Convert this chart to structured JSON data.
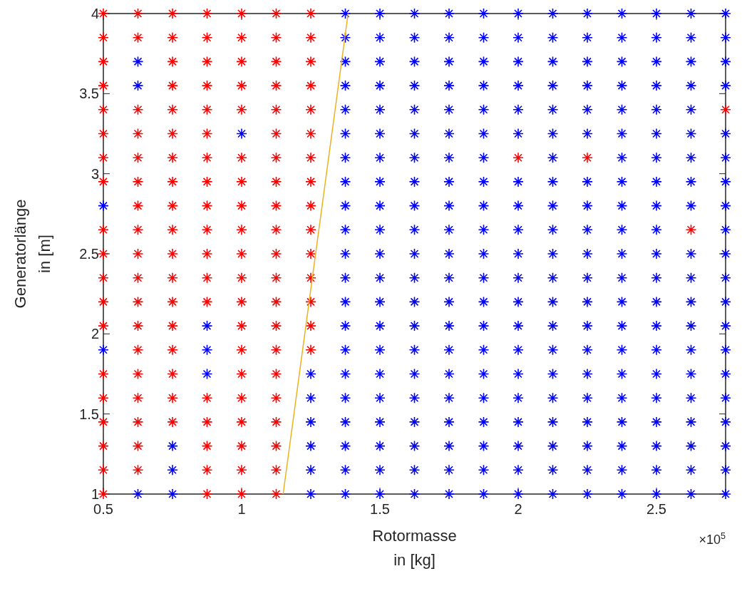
{
  "chart_data": {
    "type": "scatter",
    "xlabel": "Rotormasse\nin [kg]",
    "ylabel": "Generatorlänge\nin [m]",
    "annotations": [
      "×10$^{5}$"
    ],
    "xlim": [
      0.5,
      2.75
    ],
    "xticks": [
      0.5,
      1,
      1.5,
      2,
      2.5
    ],
    "ylim": [
      1,
      4
    ],
    "yticks": [
      1,
      1.5,
      2,
      2.5,
      3,
      3.5,
      4
    ],
    "grid": false,
    "marker": "cross",
    "series": [
      {
        "color": "#ff0000",
        "x": [
          0.5,
          0.5,
          0.5,
          0.5,
          0.5,
          0.5,
          0.5,
          0.5,
          0.5,
          0.5,
          0.5,
          0.5,
          0.5,
          0.5,
          0.5,
          0.5,
          0.5,
          0.5,
          0.5,
          0.625,
          0.625,
          0.625,
          0.625,
          0.625,
          0.625,
          0.625,
          0.625,
          0.625,
          0.625,
          0.625,
          0.625,
          0.625,
          0.625,
          0.625,
          0.625,
          0.625,
          0.625,
          0.75,
          0.75,
          0.75,
          0.75,
          0.75,
          0.75,
          0.75,
          0.75,
          0.75,
          0.75,
          0.75,
          0.75,
          0.75,
          0.75,
          0.75,
          0.75,
          0.75,
          0.75,
          0.875,
          0.875,
          0.875,
          0.875,
          0.875,
          0.875,
          0.875,
          0.875,
          0.875,
          0.875,
          0.875,
          0.875,
          0.875,
          0.875,
          0.875,
          0.875,
          0.875,
          0.875,
          1,
          1,
          1,
          1,
          1,
          1,
          1,
          1,
          1,
          1,
          1,
          1,
          1,
          1,
          1,
          1,
          1,
          1,
          1,
          1,
          1.125,
          1.125,
          1.125,
          1.125,
          1.125,
          1.125,
          1.125,
          1.125,
          1.125,
          1.125,
          1.125,
          1.125,
          1.125,
          1.125,
          1.125,
          1.125,
          1.125,
          1.125,
          1.125,
          1.125,
          1.125,
          1.25,
          1.25,
          1.25,
          1.25,
          1.25,
          1.25,
          1.25,
          1.25,
          1.25,
          1.25,
          1.25,
          1.25,
          1.25,
          1.25,
          1.25,
          2,
          2.25,
          2.625,
          2.75
        ],
        "values": [
          4,
          3.85,
          3.7,
          3.55,
          3.4,
          3.25,
          3.1,
          2.95,
          2.65,
          2.5,
          2.35,
          2.2,
          2.05,
          1.75,
          1.6,
          1.45,
          1.3,
          1.15,
          1,
          4,
          3.85,
          3.4,
          3.25,
          3.1,
          2.95,
          2.8,
          2.65,
          2.5,
          2.35,
          2.2,
          2.05,
          1.9,
          1.75,
          1.6,
          1.45,
          1.3,
          1.15,
          4,
          3.85,
          3.7,
          3.55,
          3.4,
          3.25,
          3.1,
          2.95,
          2.8,
          2.65,
          2.5,
          2.35,
          2.2,
          2.05,
          1.9,
          1.75,
          1.6,
          1.45,
          4,
          3.85,
          3.7,
          3.55,
          3.4,
          3.25,
          3.1,
          2.95,
          2.8,
          2.65,
          2.5,
          2.35,
          2.2,
          1.6,
          1.45,
          1.3,
          1.15,
          1,
          4,
          3.85,
          3.7,
          3.55,
          3.4,
          3.1,
          2.95,
          2.8,
          2.65,
          2.5,
          2.35,
          2.2,
          2.05,
          1.9,
          1.75,
          1.6,
          1.45,
          1.3,
          1.15,
          1,
          4,
          3.85,
          3.7,
          3.55,
          3.4,
          3.25,
          3.1,
          2.95,
          2.8,
          2.65,
          2.5,
          2.35,
          2.2,
          2.05,
          1.9,
          1.75,
          1.6,
          1.45,
          1.3,
          1.15,
          1,
          4,
          3.85,
          3.7,
          3.55,
          3.4,
          3.25,
          3.1,
          2.95,
          2.8,
          2.65,
          2.5,
          2.35,
          2.2,
          2.05,
          1.9,
          3.1,
          3.1,
          2.65,
          3.4
        ]
      },
      {
        "color": "#0000ff",
        "x": [
          0.5,
          0.5,
          0.625,
          0.625,
          0.625,
          0.75,
          0.75,
          0.75,
          0.875,
          0.875,
          0.875,
          1,
          1.25,
          1.25,
          1.25,
          1.25,
          1.25,
          1.25,
          1.375,
          1.375,
          1.375,
          1.375,
          1.375,
          1.375,
          1.375,
          1.375,
          1.375,
          1.375,
          1.375,
          1.375,
          1.375,
          1.375,
          1.375,
          1.375,
          1.375,
          1.375,
          1.375,
          1.375,
          1.375,
          1.5,
          1.5,
          1.5,
          1.5,
          1.5,
          1.5,
          1.5,
          1.5,
          1.5,
          1.5,
          1.5,
          1.5,
          1.5,
          1.5,
          1.5,
          1.5,
          1.5,
          1.5,
          1.5,
          1.5,
          1.5,
          1.625,
          1.625,
          1.625,
          1.625,
          1.625,
          1.625,
          1.625,
          1.625,
          1.625,
          1.625,
          1.625,
          1.625,
          1.625,
          1.625,
          1.625,
          1.625,
          1.625,
          1.625,
          1.625,
          1.625,
          1.625,
          1.75,
          1.75,
          1.75,
          1.75,
          1.75,
          1.75,
          1.75,
          1.75,
          1.75,
          1.75,
          1.75,
          1.75,
          1.75,
          1.75,
          1.75,
          1.75,
          1.75,
          1.75,
          1.75,
          1.75,
          1.75,
          1.875,
          1.875,
          1.875,
          1.875,
          1.875,
          1.875,
          1.875,
          1.875,
          1.875,
          1.875,
          1.875,
          1.875,
          1.875,
          1.875,
          1.875,
          1.875,
          1.875,
          1.875,
          1.875,
          1.875,
          1.875,
          2,
          2,
          2,
          2,
          2,
          2,
          2,
          2,
          2,
          2,
          2,
          2,
          2,
          2,
          2,
          2,
          2,
          2,
          2,
          2,
          2.125,
          2.125,
          2.125,
          2.125,
          2.125,
          2.125,
          2.125,
          2.125,
          2.125,
          2.125,
          2.125,
          2.125,
          2.125,
          2.125,
          2.125,
          2.125,
          2.125,
          2.125,
          2.125,
          2.125,
          2.125,
          2.25,
          2.25,
          2.25,
          2.25,
          2.25,
          2.25,
          2.25,
          2.25,
          2.25,
          2.25,
          2.25,
          2.25,
          2.25,
          2.25,
          2.25,
          2.25,
          2.25,
          2.25,
          2.25,
          2.25,
          2.375,
          2.375,
          2.375,
          2.375,
          2.375,
          2.375,
          2.375,
          2.375,
          2.375,
          2.375,
          2.375,
          2.375,
          2.375,
          2.375,
          2.375,
          2.375,
          2.375,
          2.375,
          2.375,
          2.375,
          2.375,
          2.5,
          2.5,
          2.5,
          2.5,
          2.5,
          2.5,
          2.5,
          2.5,
          2.5,
          2.5,
          2.5,
          2.5,
          2.5,
          2.5,
          2.5,
          2.5,
          2.5,
          2.5,
          2.5,
          2.5,
          2.5,
          2.625,
          2.625,
          2.625,
          2.625,
          2.625,
          2.625,
          2.625,
          2.625,
          2.625,
          2.625,
          2.625,
          2.625,
          2.625,
          2.625,
          2.625,
          2.625,
          2.625,
          2.625,
          2.625,
          2.625,
          2.75,
          2.75,
          2.75,
          2.75,
          2.75,
          2.75,
          2.75,
          2.75,
          2.75,
          2.75,
          2.75,
          2.75,
          2.75,
          2.75,
          2.75,
          2.75,
          2.75,
          2.75,
          2.75,
          2.75
        ],
        "values": [
          2.8,
          1.9,
          3.7,
          3.55,
          1,
          1.3,
          1.15,
          1,
          2.05,
          1.9,
          1.75,
          3.25,
          1.75,
          1.6,
          1.45,
          1.3,
          1.15,
          1,
          4,
          3.85,
          3.7,
          3.55,
          3.4,
          3.25,
          3.1,
          2.95,
          2.8,
          2.65,
          2.5,
          2.35,
          2.2,
          2.05,
          1.9,
          1.75,
          1.6,
          1.45,
          1.3,
          1.15,
          1,
          4,
          3.85,
          3.7,
          3.55,
          3.4,
          3.25,
          3.1,
          2.95,
          2.8,
          2.65,
          2.5,
          2.35,
          2.2,
          2.05,
          1.9,
          1.75,
          1.6,
          1.45,
          1.3,
          1.15,
          1,
          4,
          3.85,
          3.7,
          3.55,
          3.4,
          3.25,
          3.1,
          2.95,
          2.8,
          2.65,
          2.5,
          2.35,
          2.2,
          2.05,
          1.9,
          1.75,
          1.6,
          1.45,
          1.3,
          1.15,
          1,
          4,
          3.85,
          3.7,
          3.55,
          3.4,
          3.25,
          3.1,
          2.95,
          2.8,
          2.65,
          2.5,
          2.35,
          2.2,
          2.05,
          1.9,
          1.75,
          1.6,
          1.45,
          1.3,
          1.15,
          1,
          4,
          3.85,
          3.7,
          3.55,
          3.4,
          3.25,
          3.1,
          2.95,
          2.8,
          2.65,
          2.5,
          2.35,
          2.2,
          2.05,
          1.9,
          1.75,
          1.6,
          1.45,
          1.3,
          1.15,
          1,
          4,
          3.85,
          3.7,
          3.55,
          3.4,
          3.25,
          2.95,
          2.8,
          2.65,
          2.5,
          2.35,
          2.2,
          2.05,
          1.9,
          1.75,
          1.6,
          1.45,
          1.3,
          1.15,
          1,
          4,
          3.85,
          3.7,
          3.55,
          3.4,
          3.25,
          3.1,
          2.95,
          2.8,
          2.65,
          2.5,
          2.35,
          2.2,
          2.05,
          1.9,
          1.75,
          1.6,
          1.45,
          1.3,
          1.15,
          1,
          4,
          3.85,
          3.7,
          3.55,
          3.4,
          3.25,
          2.95,
          2.8,
          2.65,
          2.5,
          2.35,
          2.2,
          2.05,
          1.9,
          1.75,
          1.6,
          1.45,
          1.3,
          1.15,
          1,
          4,
          3.85,
          3.7,
          3.55,
          3.4,
          3.25,
          3.1,
          2.95,
          2.8,
          2.65,
          2.5,
          2.35,
          2.2,
          2.05,
          1.9,
          1.75,
          1.6,
          1.45,
          1.3,
          1.15,
          1,
          4,
          3.85,
          3.7,
          3.55,
          3.4,
          3.25,
          3.1,
          2.95,
          2.8,
          2.65,
          2.5,
          2.35,
          2.2,
          2.05,
          1.9,
          1.75,
          1.6,
          1.45,
          1.3,
          1.15,
          1,
          4,
          3.85,
          3.7,
          3.55,
          3.4,
          3.25,
          3.1,
          2.95,
          2.8,
          2.5,
          2.35,
          2.2,
          2.05,
          1.9,
          1.75,
          1.6,
          1.45,
          1.3,
          1.15,
          1,
          4,
          3.85,
          3.7,
          3.55,
          3.25,
          3.1,
          2.95,
          2.8,
          2.65,
          2.5,
          2.35,
          2.2,
          2.05,
          1.9,
          1.75,
          1.6,
          1.45,
          1.3,
          1.15,
          1
        ]
      },
      {
        "type": "line",
        "color": "#edb120",
        "marker": "none",
        "x": [
          1.15,
          1.385
        ],
        "values": [
          1,
          4
        ]
      }
    ]
  }
}
